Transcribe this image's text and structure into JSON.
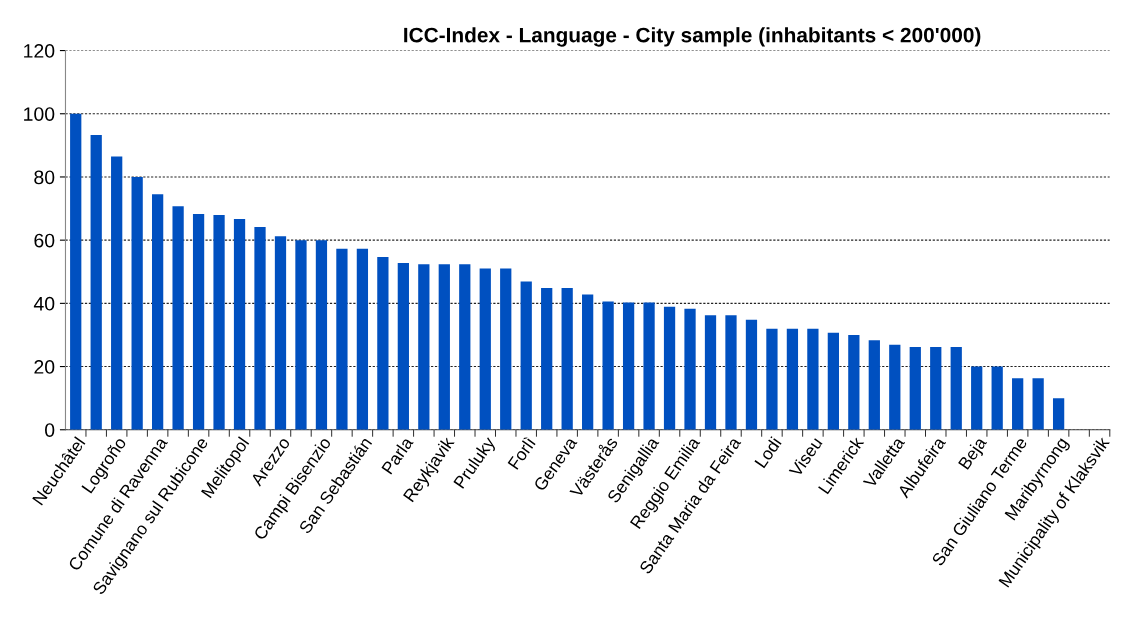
{
  "chart_data": {
    "type": "bar",
    "title": "ICC-Index - Language - City sample (inhabitants < 200'000)",
    "categories": [
      "Neuchâtel",
      null,
      "Logroño",
      null,
      "Comune di Ravenna",
      null,
      "Savignano sul Rubicone",
      null,
      "Melitopol",
      null,
      "Arezzo",
      null,
      "Campi Bisenzio",
      null,
      "San Sebastián",
      null,
      "Parla",
      null,
      "Reykjavik",
      null,
      "Pruluky",
      null,
      "Forlì",
      null,
      "Geneva",
      null,
      "Västerås",
      null,
      "Senigallia",
      null,
      "Reggio Emilia",
      null,
      "Santa Maria da Feira",
      null,
      "Lodi",
      null,
      "Viseu",
      null,
      "Limerick",
      null,
      "Valletta",
      null,
      "Albufeira",
      null,
      "Beja",
      null,
      "San Giuliano Terme",
      null,
      "Maribyrnong",
      null,
      "Municipality of Klaksvik"
    ],
    "values": [
      100,
      93.3,
      86.5,
      80,
      74.5,
      70.7,
      68.3,
      68,
      66.7,
      64.2,
      61.2,
      60,
      60,
      57.3,
      57.3,
      54.7,
      52.8,
      52.4,
      52.4,
      52.4,
      51,
      51,
      46.9,
      44.9,
      44.9,
      42.8,
      40.6,
      40.3,
      40.3,
      38.9,
      38.3,
      36.2,
      36.2,
      34.8,
      32,
      32,
      32,
      30.7,
      30,
      28.3,
      26.9,
      26.2,
      26.2,
      26.2,
      20,
      20,
      16.3,
      16.3,
      10,
      0,
      0
    ],
    "color": "#0050c0",
    "ylim": [
      0,
      120
    ],
    "yticks": [
      0,
      20,
      40,
      60,
      80,
      100,
      120
    ],
    "grid": "y"
  }
}
